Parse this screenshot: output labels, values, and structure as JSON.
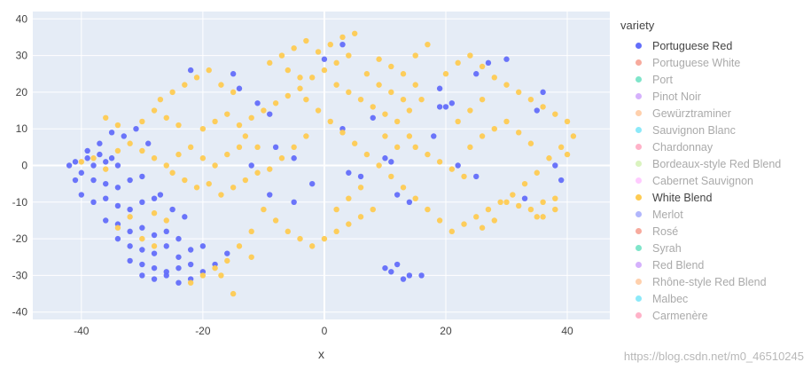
{
  "chart_data": {
    "type": "scatter",
    "xlabel": "x",
    "ylabel": "",
    "xlim": [
      -48,
      47
    ],
    "ylim": [
      -42,
      42
    ],
    "x_ticks": [
      -40,
      -20,
      0,
      20,
      40
    ],
    "y_ticks": [
      -40,
      -30,
      -20,
      -10,
      0,
      10,
      20,
      30,
      40
    ],
    "grid": true,
    "legend_position": "right",
    "series": [
      {
        "name": "Portuguese Red",
        "color": "#636efa",
        "visible": true,
        "points": [
          [
            -42,
            0
          ],
          [
            -41,
            1
          ],
          [
            -40,
            -2
          ],
          [
            -39,
            2
          ],
          [
            -38,
            0
          ],
          [
            -37,
            3
          ],
          [
            -36,
            1
          ],
          [
            -35,
            2
          ],
          [
            -34,
            0
          ],
          [
            -38,
            -4
          ],
          [
            -36,
            -5
          ],
          [
            -34,
            -6
          ],
          [
            -32,
            -4
          ],
          [
            -30,
            -3
          ],
          [
            -40,
            -8
          ],
          [
            -38,
            -10
          ],
          [
            -36,
            -9
          ],
          [
            -34,
            -11
          ],
          [
            -32,
            -12
          ],
          [
            -30,
            -10
          ],
          [
            -28,
            -9
          ],
          [
            -36,
            -15
          ],
          [
            -34,
            -16
          ],
          [
            -32,
            -18
          ],
          [
            -30,
            -17
          ],
          [
            -28,
            -19
          ],
          [
            -26,
            -18
          ],
          [
            -24,
            -20
          ],
          [
            -34,
            -20
          ],
          [
            -32,
            -22
          ],
          [
            -30,
            -23
          ],
          [
            -28,
            -24
          ],
          [
            -26,
            -22
          ],
          [
            -24,
            -25
          ],
          [
            -22,
            -23
          ],
          [
            -32,
            -26
          ],
          [
            -30,
            -27
          ],
          [
            -28,
            -28
          ],
          [
            -26,
            -29
          ],
          [
            -24,
            -28
          ],
          [
            -22,
            -27
          ],
          [
            -30,
            -30
          ],
          [
            -28,
            -31
          ],
          [
            -26,
            -30
          ],
          [
            -24,
            -32
          ],
          [
            -22,
            -31
          ],
          [
            -20,
            -29
          ],
          [
            -27,
            -8
          ],
          [
            -25,
            -12
          ],
          [
            -23,
            -14
          ],
          [
            -29,
            6
          ],
          [
            -31,
            10
          ],
          [
            -33,
            8
          ],
          [
            -35,
            9
          ],
          [
            -37,
            6
          ],
          [
            -39,
            4
          ],
          [
            -41,
            -4
          ],
          [
            -20,
            -22
          ],
          [
            -18,
            -27
          ],
          [
            -16,
            -24
          ],
          [
            -15,
            25
          ],
          [
            -22,
            26
          ],
          [
            -8,
            5
          ],
          [
            -12,
            0
          ],
          [
            -5,
            2
          ],
          [
            4,
            -2
          ],
          [
            6,
            -3
          ],
          [
            10,
            2
          ],
          [
            11,
            1
          ],
          [
            12,
            -8
          ],
          [
            14,
            -10
          ],
          [
            10,
            -28
          ],
          [
            11,
            -29
          ],
          [
            13,
            -31
          ],
          [
            14,
            -30
          ],
          [
            16,
            -30
          ],
          [
            12,
            -27
          ],
          [
            19,
            16
          ],
          [
            20,
            16
          ],
          [
            19,
            21
          ],
          [
            21,
            17
          ],
          [
            25,
            25
          ],
          [
            27,
            28
          ],
          [
            30,
            29
          ],
          [
            36,
            20
          ],
          [
            35,
            15
          ],
          [
            38,
            0
          ],
          [
            39,
            -4
          ],
          [
            33,
            -9
          ],
          [
            25,
            -3
          ],
          [
            22,
            0
          ],
          [
            18,
            8
          ],
          [
            -5,
            -10
          ],
          [
            -9,
            -8
          ],
          [
            -2,
            -5
          ],
          [
            -11,
            17
          ],
          [
            -14,
            21
          ],
          [
            -9,
            14
          ],
          [
            3,
            10
          ],
          [
            8,
            13
          ],
          [
            0,
            29
          ],
          [
            3,
            33
          ]
        ]
      },
      {
        "name": "Portuguese White",
        "color": "#EF553B",
        "visible": false,
        "points": []
      },
      {
        "name": "Port",
        "color": "#00cc96",
        "visible": false,
        "points": []
      },
      {
        "name": "Pinot Noir",
        "color": "#ab63fa",
        "visible": false,
        "points": []
      },
      {
        "name": "Gewürztraminer",
        "color": "#FFA15A",
        "visible": false,
        "points": []
      },
      {
        "name": "Sauvignon Blanc",
        "color": "#19d3f3",
        "visible": false,
        "points": []
      },
      {
        "name": "Chardonnay",
        "color": "#FF6692",
        "visible": false,
        "points": []
      },
      {
        "name": "Bordeaux-style Red Blend",
        "color": "#B6E880",
        "visible": false,
        "points": []
      },
      {
        "name": "Cabernet Sauvignon",
        "color": "#FF97FF",
        "visible": false,
        "points": []
      },
      {
        "name": "White Blend",
        "color": "#FECB52",
        "visible": true,
        "points": [
          [
            -30,
            4
          ],
          [
            -28,
            2
          ],
          [
            -26,
            0
          ],
          [
            -24,
            3
          ],
          [
            -22,
            5
          ],
          [
            -20,
            2
          ],
          [
            -18,
            0
          ],
          [
            -16,
            3
          ],
          [
            -14,
            5
          ],
          [
            -25,
            -2
          ],
          [
            -23,
            -4
          ],
          [
            -21,
            -6
          ],
          [
            -19,
            -5
          ],
          [
            -17,
            -8
          ],
          [
            -15,
            -6
          ],
          [
            -13,
            -4
          ],
          [
            -11,
            -2
          ],
          [
            -20,
            10
          ],
          [
            -18,
            12
          ],
          [
            -16,
            14
          ],
          [
            -14,
            11
          ],
          [
            -12,
            13
          ],
          [
            -10,
            15
          ],
          [
            -8,
            17
          ],
          [
            -6,
            19
          ],
          [
            -4,
            21
          ],
          [
            -2,
            24
          ],
          [
            0,
            26
          ],
          [
            2,
            28
          ],
          [
            4,
            30
          ],
          [
            -1,
            31
          ],
          [
            1,
            33
          ],
          [
            3,
            35
          ],
          [
            5,
            36
          ],
          [
            -3,
            34
          ],
          [
            -5,
            32
          ],
          [
            -7,
            30
          ],
          [
            -9,
            28
          ],
          [
            -6,
            26
          ],
          [
            -4,
            24
          ],
          [
            2,
            22
          ],
          [
            4,
            20
          ],
          [
            6,
            18
          ],
          [
            8,
            16
          ],
          [
            10,
            14
          ],
          [
            12,
            12
          ],
          [
            14,
            15
          ],
          [
            16,
            18
          ],
          [
            15,
            22
          ],
          [
            13,
            25
          ],
          [
            11,
            27
          ],
          [
            9,
            29
          ],
          [
            20,
            25
          ],
          [
            22,
            28
          ],
          [
            24,
            30
          ],
          [
            26,
            27
          ],
          [
            28,
            24
          ],
          [
            30,
            22
          ],
          [
            32,
            20
          ],
          [
            34,
            18
          ],
          [
            36,
            16
          ],
          [
            38,
            14
          ],
          [
            40,
            12
          ],
          [
            41,
            8
          ],
          [
            39,
            5
          ],
          [
            37,
            2
          ],
          [
            35,
            -2
          ],
          [
            33,
            -5
          ],
          [
            31,
            -8
          ],
          [
            29,
            -10
          ],
          [
            27,
            -12
          ],
          [
            25,
            -14
          ],
          [
            23,
            -16
          ],
          [
            21,
            -18
          ],
          [
            19,
            -15
          ],
          [
            17,
            -12
          ],
          [
            15,
            -9
          ],
          [
            13,
            -6
          ],
          [
            11,
            -3
          ],
          [
            9,
            0
          ],
          [
            7,
            3
          ],
          [
            5,
            6
          ],
          [
            3,
            9
          ],
          [
            1,
            12
          ],
          [
            -1,
            15
          ],
          [
            -3,
            18
          ],
          [
            30,
            -10
          ],
          [
            32,
            -11
          ],
          [
            34,
            -12
          ],
          [
            36,
            -10
          ],
          [
            38,
            -9
          ],
          [
            35,
            -14
          ],
          [
            28,
            -15
          ],
          [
            26,
            -17
          ],
          [
            24,
            5
          ],
          [
            26,
            8
          ],
          [
            28,
            10
          ],
          [
            30,
            12
          ],
          [
            32,
            9
          ],
          [
            34,
            6
          ],
          [
            22,
            12
          ],
          [
            24,
            15
          ],
          [
            26,
            18
          ],
          [
            -10,
            -12
          ],
          [
            -8,
            -15
          ],
          [
            -6,
            -18
          ],
          [
            -4,
            -20
          ],
          [
            -2,
            -22
          ],
          [
            0,
            -20
          ],
          [
            2,
            -18
          ],
          [
            4,
            -16
          ],
          [
            6,
            -14
          ],
          [
            8,
            -12
          ],
          [
            -12,
            -18
          ],
          [
            -14,
            -22
          ],
          [
            -16,
            -26
          ],
          [
            -18,
            -28
          ],
          [
            -20,
            -30
          ],
          [
            -22,
            -32
          ],
          [
            -15,
            -35
          ],
          [
            -17,
            -30
          ],
          [
            -12,
            -25
          ],
          [
            -26,
            -15
          ],
          [
            -28,
            -13
          ],
          [
            -32,
            -14
          ],
          [
            -34,
            -17
          ],
          [
            -30,
            -20
          ],
          [
            -28,
            -22
          ],
          [
            -36,
            -1
          ],
          [
            -38,
            2
          ],
          [
            -40,
            1
          ],
          [
            -34,
            4
          ],
          [
            -32,
            6
          ],
          [
            -27,
            18
          ],
          [
            -25,
            20
          ],
          [
            -23,
            22
          ],
          [
            -21,
            24
          ],
          [
            -19,
            26
          ],
          [
            -17,
            22
          ],
          [
            -15,
            20
          ],
          [
            -24,
            11
          ],
          [
            -26,
            13
          ],
          [
            -28,
            15
          ],
          [
            -30,
            12
          ],
          [
            -34,
            11
          ],
          [
            -36,
            13
          ],
          [
            7,
            25
          ],
          [
            9,
            22
          ],
          [
            11,
            20
          ],
          [
            13,
            18
          ],
          [
            15,
            5
          ],
          [
            17,
            3
          ],
          [
            19,
            1
          ],
          [
            21,
            -1
          ],
          [
            23,
            -3
          ],
          [
            15,
            30
          ],
          [
            17,
            33
          ],
          [
            14,
            8
          ],
          [
            12,
            5
          ],
          [
            10,
            8
          ],
          [
            6,
            -6
          ],
          [
            4,
            -9
          ],
          [
            2,
            -12
          ],
          [
            -7,
            2
          ],
          [
            -5,
            5
          ],
          [
            -3,
            8
          ],
          [
            -9,
            -1
          ],
          [
            -11,
            5
          ],
          [
            -13,
            8
          ],
          [
            40,
            3
          ],
          [
            38,
            -12
          ],
          [
            36,
            -14
          ]
        ]
      },
      {
        "name": "Merlot",
        "color": "#636efa",
        "visible": false,
        "points": []
      },
      {
        "name": "Rosé",
        "color": "#EF553B",
        "visible": false,
        "points": []
      },
      {
        "name": "Syrah",
        "color": "#00cc96",
        "visible": false,
        "points": []
      },
      {
        "name": "Red Blend",
        "color": "#ab63fa",
        "visible": false,
        "points": []
      },
      {
        "name": "Rhône-style Red Blend",
        "color": "#FFA15A",
        "visible": false,
        "points": []
      },
      {
        "name": "Malbec",
        "color": "#19d3f3",
        "visible": false,
        "points": []
      },
      {
        "name": "Carmenère",
        "color": "#FF6692",
        "visible": false,
        "points": []
      }
    ]
  },
  "legend": {
    "title": "variety"
  },
  "watermark": "https://blog.csdn.net/m0_46510245"
}
